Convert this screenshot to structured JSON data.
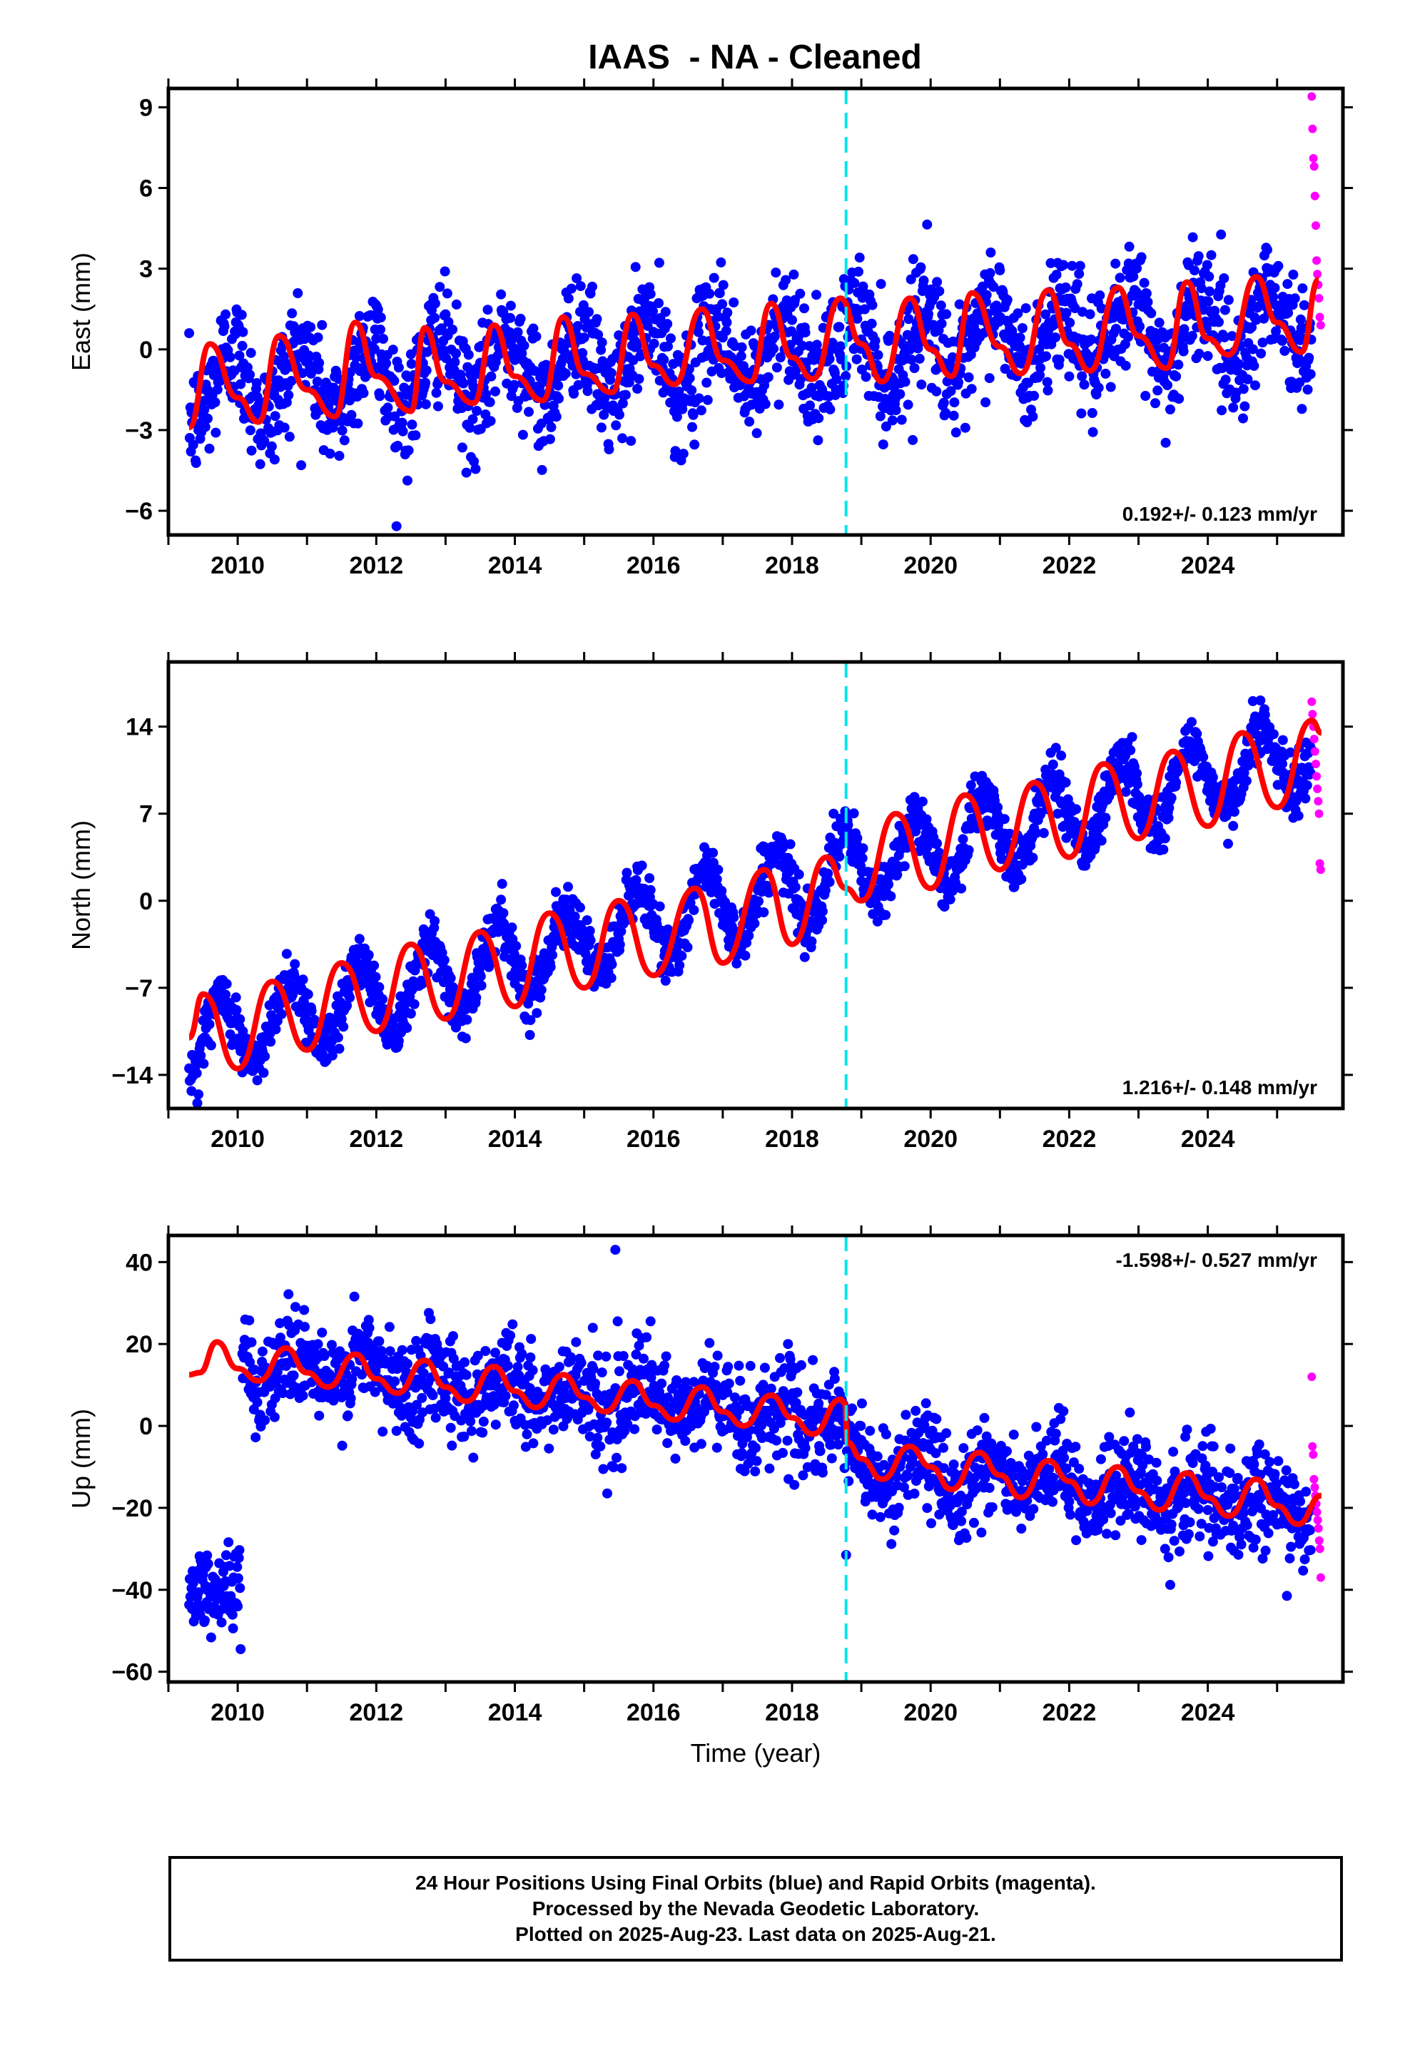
{
  "chart_data": {
    "type": "scatter",
    "title": "IAAS  - NA - Cleaned",
    "xlabel": "Time (year)",
    "xlim": [
      2009.0,
      2025.95
    ],
    "x_ticks": [
      2010,
      2012,
      2014,
      2016,
      2018,
      2020,
      2022,
      2024
    ],
    "x_tick_labels": [
      "2010",
      "2012",
      "2014",
      "2016",
      "2018",
      "2020",
      "2022",
      "2024"
    ],
    "first_data_year": 2009.3,
    "last_data_year": 2025.64,
    "rapid_start_year": 2025.5,
    "dashed_line_year": 2018.78,
    "series_colors": {
      "final_orbits": "#0000ff",
      "rapid_orbits": "#ff00ff",
      "model": "#ff0000",
      "event_line": "#00e5ee"
    },
    "panels": [
      {
        "ylabel": "East (mm)",
        "ylim": [
          -6.9,
          9.7
        ],
        "y_ticks": [
          9,
          6,
          3,
          0,
          -3,
          -6
        ],
        "y_tick_labels": [
          "9",
          "6",
          "3",
          "0",
          "−3",
          "−6"
        ],
        "rate_text": "0.192+/- 0.123 mm/yr",
        "rate_position": "bottom-right",
        "trend": {
          "at_2009_3": -1.4,
          "rate_mm_per_yr": 0.15
        },
        "seasonal_amplitude": 1.3,
        "seasonal_phase": 0.65,
        "noise_sd": 1.1,
        "model_curve": {
          "x": [
            2009.3,
            2009.6,
            2010.0,
            2010.3,
            2010.6,
            2011.0,
            2011.4,
            2011.7,
            2012.0,
            2012.5,
            2012.7,
            2013.0,
            2013.4,
            2013.7,
            2014.0,
            2014.4,
            2014.7,
            2015.0,
            2015.4,
            2015.7,
            2016.0,
            2016.3,
            2016.7,
            2017.0,
            2017.4,
            2017.7,
            2018.0,
            2018.3,
            2018.7,
            2019.0,
            2019.3,
            2019.7,
            2020.0,
            2020.3,
            2020.6,
            2021.0,
            2021.3,
            2021.7,
            2022.0,
            2022.3,
            2022.7,
            2023.0,
            2023.4,
            2023.7,
            2024.0,
            2024.3,
            2024.7,
            2025.0,
            2025.35,
            2025.6
          ],
          "y": [
            -2.9,
            0.2,
            -1.8,
            -2.7,
            0.5,
            -1.5,
            -2.5,
            1.0,
            -1.0,
            -2.3,
            0.8,
            -1.2,
            -2.0,
            0.9,
            -1.0,
            -1.9,
            1.2,
            -0.9,
            -1.6,
            1.3,
            -0.6,
            -1.3,
            1.5,
            -0.4,
            -1.2,
            1.7,
            -0.3,
            -1.1,
            1.9,
            0.2,
            -1.2,
            1.9,
            0.0,
            -1.0,
            2.1,
            0.1,
            -0.9,
            2.2,
            0.2,
            -0.8,
            2.3,
            0.5,
            -0.7,
            2.5,
            0.4,
            -0.2,
            2.7,
            1.0,
            -0.1,
            2.6
          ]
        },
        "rapid_points": [
          9.4,
          8.2,
          7.1,
          6.8,
          5.7,
          4.6,
          3.3,
          2.8,
          2.4,
          1.9,
          1.2,
          0.9
        ]
      },
      {
        "ylabel": "North (mm)",
        "ylim": [
          -16.7,
          19.2
        ],
        "y_ticks": [
          14,
          7,
          0,
          -7,
          -14
        ],
        "y_tick_labels": [
          "14",
          "7",
          "0",
          "−7",
          "−14"
        ],
        "rate_text": "1.216+/- 0.148 mm/yr",
        "rate_position": "bottom-right",
        "trend": {
          "at_2009_3": -11.5,
          "rate_mm_per_yr": 1.46
        },
        "seasonal_amplitude": 3.0,
        "seasonal_phase": 0.5,
        "noise_sd": 1.1,
        "model_curve": {
          "x": [
            2009.3,
            2009.5,
            2010.0,
            2010.5,
            2011.0,
            2011.5,
            2012.0,
            2012.5,
            2013.0,
            2013.5,
            2014.0,
            2014.5,
            2015.0,
            2015.5,
            2016.0,
            2016.6,
            2017.0,
            2017.6,
            2018.0,
            2018.5,
            2018.78,
            2019.0,
            2019.5,
            2020.0,
            2020.5,
            2021.0,
            2021.5,
            2022.0,
            2022.5,
            2023.0,
            2023.5,
            2024.0,
            2024.5,
            2025.0,
            2025.5,
            2025.64
          ],
          "y": [
            -11.0,
            -7.5,
            -13.5,
            -6.5,
            -12.0,
            -5.0,
            -10.5,
            -3.5,
            -9.5,
            -2.5,
            -8.5,
            -1.0,
            -7.0,
            0.0,
            -6.0,
            1.0,
            -5.0,
            2.5,
            -3.5,
            3.5,
            1.0,
            0.0,
            7.0,
            1.0,
            8.5,
            2.5,
            9.5,
            3.5,
            11.0,
            5.0,
            12.0,
            6.0,
            13.5,
            7.5,
            14.5,
            13.5
          ]
        },
        "rapid_points": [
          16.0,
          15.0,
          14.0,
          13.0,
          12.0,
          11.0,
          10.0,
          9.0,
          8.0,
          7.0,
          3.0,
          2.5
        ]
      },
      {
        "ylabel": "Up (mm)",
        "ylim": [
          -62.5,
          46.5
        ],
        "y_ticks": [
          40,
          20,
          0,
          -20,
          -40,
          -60
        ],
        "y_tick_labels": [
          "40",
          "20",
          "0",
          "−20",
          "−40",
          "−60"
        ],
        "rate_text": "-1.598+/- 0.527 mm/yr",
        "rate_position": "top-right",
        "trend": {
          "at_2009_3": 17.0,
          "rate_mm_per_yr": -1.7
        },
        "offset_at_2018_78": -10.0,
        "early_cluster": {
          "start": 2009.3,
          "end": 2010.05,
          "center": -40.0,
          "sd": 5.0
        },
        "seasonal_amplitude": 4.0,
        "seasonal_phase": 0.6,
        "noise_sd": 6.0,
        "model_curve": {
          "x": [
            2009.3,
            2009.45,
            2009.7,
            2010.0,
            2010.3,
            2010.7,
            2011.0,
            2011.3,
            2011.7,
            2012.0,
            2012.3,
            2012.7,
            2013.0,
            2013.3,
            2013.7,
            2014.0,
            2014.3,
            2014.7,
            2015.0,
            2015.3,
            2015.7,
            2016.0,
            2016.3,
            2016.7,
            2017.0,
            2017.3,
            2017.7,
            2018.0,
            2018.3,
            2018.7,
            2018.76,
            2018.8,
            2019.0,
            2019.3,
            2019.7,
            2020.0,
            2020.3,
            2020.7,
            2021.0,
            2021.3,
            2021.7,
            2022.0,
            2022.3,
            2022.7,
            2023.0,
            2023.3,
            2023.7,
            2024.0,
            2024.3,
            2024.7,
            2025.0,
            2025.3,
            2025.64
          ],
          "y": [
            12.5,
            13.0,
            20.5,
            14.0,
            11.0,
            19.0,
            13.0,
            9.5,
            17.5,
            11.5,
            8.0,
            16.0,
            9.5,
            6.0,
            14.5,
            8.5,
            4.5,
            12.5,
            7.0,
            3.5,
            11.0,
            5.0,
            1.5,
            9.5,
            3.5,
            0.0,
            7.5,
            2.0,
            -2.0,
            6.5,
            5.5,
            -4.0,
            -8.0,
            -13.0,
            -5.0,
            -10.0,
            -15.5,
            -6.5,
            -12.0,
            -17.5,
            -8.5,
            -13.5,
            -19.0,
            -10.0,
            -16.0,
            -20.5,
            -11.5,
            -17.5,
            -22.0,
            -13.0,
            -19.5,
            -24.0,
            -17.0
          ]
        },
        "rapid_points": [
          12.0,
          -5.0,
          -7.0,
          -13.0,
          -15.0,
          -17.0,
          -19.0,
          -21.0,
          -23.0,
          -25.0,
          -28.0,
          -30.0,
          -37.0
        ],
        "outlier_points": [
          {
            "x": 2018.78,
            "y": -31.5
          },
          {
            "x": 2015.45,
            "y": 43.0
          }
        ]
      }
    ]
  },
  "footer": {
    "line1": "24 Hour Positions Using Final Orbits (blue) and Rapid Orbits (magenta).",
    "line2": "Processed by the Nevada Geodetic Laboratory.",
    "line3": "Plotted on 2025-Aug-23. Last data on 2025-Aug-21."
  }
}
